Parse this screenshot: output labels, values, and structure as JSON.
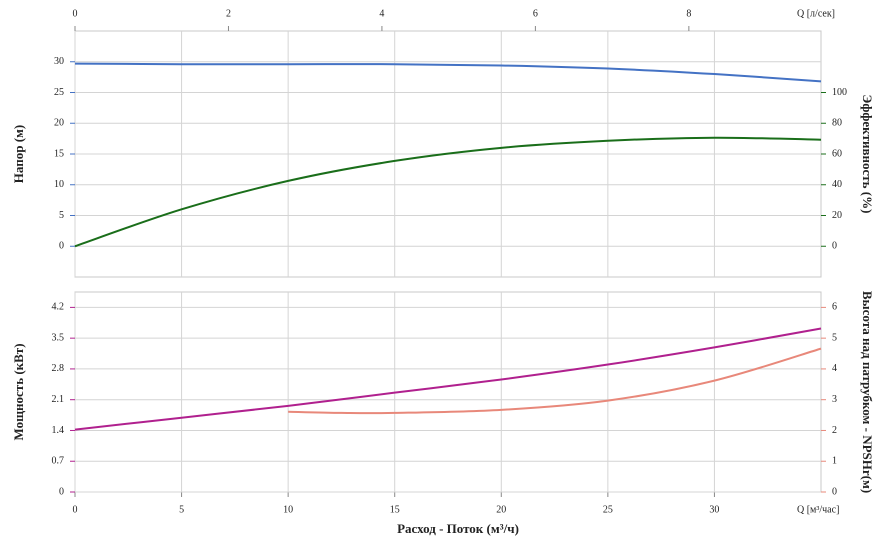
{
  "chart_data": [
    {
      "type": "line",
      "y_label": "Напор (м)",
      "y_color": "#4472c4",
      "y2_label": "Эффективность (%)",
      "y2_color": "#1a6e1a",
      "x2_label": "Q [л/сек]",
      "xlim": [
        0,
        35
      ],
      "xticks": [
        0,
        5,
        10,
        15,
        20,
        25,
        30
      ],
      "x2lim": [
        0,
        9.7222
      ],
      "x2ticks": [
        0,
        2,
        4,
        6,
        8
      ],
      "ylim": [
        -5,
        35
      ],
      "yticks": [
        0,
        5,
        10,
        15,
        20,
        25,
        30
      ],
      "y2lim": [
        -20,
        140
      ],
      "y2ticks": [
        0,
        20,
        40,
        60,
        80,
        100
      ],
      "grid": true,
      "series": [
        {
          "color": "#4472c4",
          "x": [
            0,
            5,
            10,
            15,
            20,
            25,
            30,
            35
          ],
          "values": [
            29.7,
            29.6,
            29.6,
            29.6,
            29.4,
            28.9,
            28.0,
            26.8
          ]
        },
        {
          "color": "#1a6e1a",
          "axis": "y2",
          "x": [
            0,
            5,
            10,
            15,
            20,
            25,
            30,
            35
          ],
          "values": [
            0,
            24,
            42.5,
            55.5,
            64,
            68.6,
            70.6,
            69.3
          ]
        }
      ]
    },
    {
      "type": "line",
      "y_label": "Мощность (кВт)",
      "y_color": "#b0208e",
      "y2_label": "Высота над патрубком - NPSHr(м)",
      "y2_color": "#e8887a",
      "x_label": "Q [м³/час]",
      "x_title": "Расход - Поток (м³/ч)",
      "xlim": [
        0,
        35
      ],
      "xticks": [
        0,
        5,
        10,
        15,
        20,
        25,
        30
      ],
      "ylim": [
        0,
        4.55
      ],
      "yticks": [
        0,
        0.7,
        1.4,
        2.1,
        2.8,
        3.5,
        4.2
      ],
      "y2lim": [
        0,
        6.5
      ],
      "y2ticks": [
        0,
        1,
        2,
        3,
        4,
        5,
        6
      ],
      "grid": true,
      "series": [
        {
          "color": "#b0208e",
          "x": [
            0,
            5,
            10,
            15,
            20,
            25,
            30,
            35
          ],
          "values": [
            1.42,
            1.69,
            1.96,
            2.26,
            2.56,
            2.9,
            3.29,
            3.72
          ]
        },
        {
          "color": "#e8887a",
          "axis": "y2",
          "x": [
            10,
            12.5,
            15,
            20,
            25,
            30,
            35
          ],
          "values": [
            2.61,
            2.57,
            2.57,
            2.67,
            2.97,
            3.62,
            4.66
          ]
        }
      ]
    }
  ]
}
